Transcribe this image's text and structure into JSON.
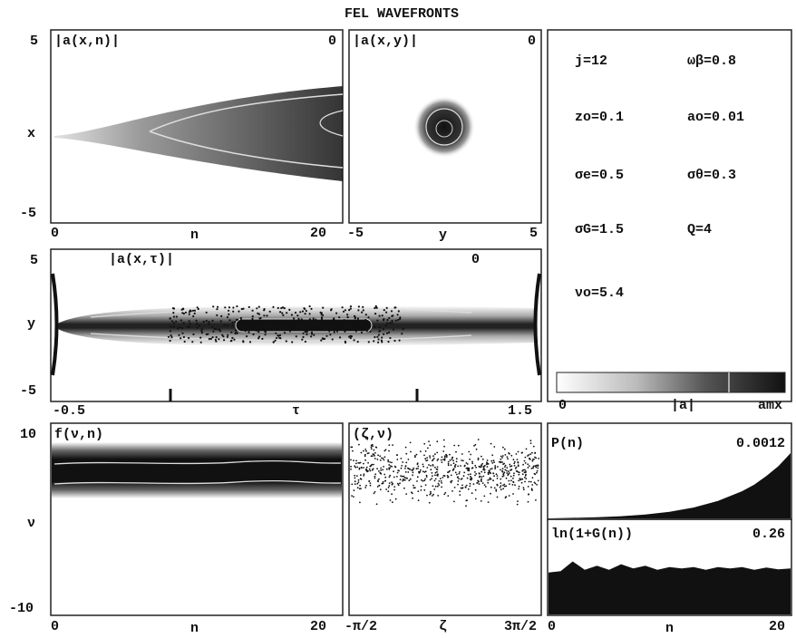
{
  "title": "FEL WAVEFRONTS",
  "parameters": [
    {
      "text": "j=12"
    },
    {
      "text": "ωβ=0.8"
    },
    {
      "text": "zo=0.1"
    },
    {
      "text": "ao=0.01"
    },
    {
      "text": "σe=0.5"
    },
    {
      "text": "σθ=0.3"
    },
    {
      "text": "σG=1.5"
    },
    {
      "text": "Q=4"
    },
    {
      "text": "νo=5.4"
    }
  ],
  "colorbar": {
    "min_label": "0",
    "mid_label": "|a|",
    "max_label": "amx"
  },
  "chart_data": [
    {
      "type": "heatmap",
      "label": "|a(x,n)|",
      "value_label": "0",
      "xlabel": "n",
      "ylabel": "x",
      "xlim": [
        0,
        20
      ],
      "ylim": [
        -5,
        5
      ],
      "x_ticks": [
        "0",
        "20"
      ],
      "y_ticks": [
        "5",
        "-5"
      ]
    },
    {
      "type": "heatmap",
      "label": "|a(x,y)|",
      "value_label": "0",
      "xlabel": "y",
      "xlim": [
        -5,
        5
      ],
      "x_ticks": [
        "-5",
        "5"
      ]
    },
    {
      "type": "heatmap",
      "label": "|a(x,τ)|",
      "value_label": "0",
      "xlabel": "τ",
      "ylabel": "y",
      "xlim": [
        -0.5,
        1.5
      ],
      "ylim": [
        -5,
        5
      ],
      "x_ticks": [
        "-0.5",
        "1.5"
      ],
      "y_ticks": [
        "5",
        "-5"
      ]
    },
    {
      "type": "heatmap",
      "label": "f(ν,n)",
      "xlabel": "n",
      "ylabel": "ν",
      "xlim": [
        0,
        20
      ],
      "ylim": [
        -10,
        10
      ],
      "x_ticks": [
        "0",
        "20"
      ],
      "y_ticks": [
        "10",
        "-10"
      ]
    },
    {
      "type": "scatter",
      "label": "(ζ,ν)",
      "xlabel": "ζ",
      "x_ticks": [
        "-π/2",
        "3π/2"
      ]
    },
    {
      "type": "area",
      "label": "P(n)",
      "value_label": "0.0012",
      "x": [
        0,
        2,
        4,
        6,
        8,
        10,
        12,
        14,
        16,
        17,
        18,
        19,
        20
      ],
      "values": [
        0,
        1e-05,
        2e-05,
        4e-05,
        7e-05,
        0.00012,
        0.0002,
        0.00032,
        0.0005,
        0.00062,
        0.00078,
        0.00096,
        0.0012
      ],
      "ylim": [
        0,
        0.0012
      ]
    },
    {
      "type": "area",
      "label": "ln(1+G(n))",
      "value_label": "0.26",
      "xlabel": "n",
      "xlim": [
        0,
        20
      ],
      "x_ticks": [
        "0",
        "20"
      ],
      "x": [
        0,
        1,
        2,
        3,
        4,
        5,
        6,
        7,
        8,
        9,
        10,
        11,
        12,
        13,
        14,
        15,
        16,
        17,
        18,
        19,
        20
      ],
      "values": [
        0.15,
        0.155,
        0.19,
        0.16,
        0.175,
        0.16,
        0.18,
        0.165,
        0.175,
        0.16,
        0.17,
        0.165,
        0.17,
        0.16,
        0.17,
        0.165,
        0.17,
        0.16,
        0.168,
        0.162,
        0.165
      ],
      "ylim": [
        0,
        0.26
      ]
    }
  ]
}
